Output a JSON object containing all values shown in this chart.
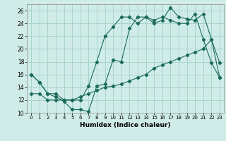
{
  "xlabel": "Humidex (Indice chaleur)",
  "background_color": "#d0ece8",
  "grid_color": "#a8d4cc",
  "line_color": "#1a6b5a",
  "xlim": [
    -0.5,
    23.5
  ],
  "ylim": [
    10,
    27
  ],
  "xticks": [
    0,
    1,
    2,
    3,
    4,
    5,
    6,
    7,
    8,
    9,
    10,
    11,
    12,
    13,
    14,
    15,
    16,
    17,
    18,
    19,
    20,
    21,
    22,
    23
  ],
  "yticks": [
    10,
    12,
    14,
    16,
    18,
    20,
    22,
    24,
    26
  ],
  "series1_x": [
    0,
    1,
    2,
    3,
    4,
    5,
    6,
    7,
    8,
    9,
    10,
    11,
    12,
    13,
    14,
    15,
    16,
    17,
    18,
    19,
    20,
    21,
    22,
    23
  ],
  "series1_y": [
    16,
    14.8,
    13,
    12.5,
    11.8,
    10.5,
    10.5,
    10.2,
    14.2,
    14.5,
    18.3,
    18.0,
    23.2,
    25.0,
    25.0,
    24.0,
    24.5,
    26.5,
    25.0,
    24.7,
    24.5,
    25.5,
    21.5,
    17.8
  ],
  "series2_x": [
    0,
    1,
    2,
    3,
    4,
    5,
    6,
    7,
    8,
    9,
    10,
    11,
    12,
    13,
    14,
    15,
    16,
    17,
    18,
    19,
    20,
    21,
    22,
    23
  ],
  "series2_y": [
    13.0,
    13.0,
    12.0,
    12.0,
    12.0,
    12.0,
    12.5,
    13.0,
    13.5,
    14.0,
    14.2,
    14.5,
    15.0,
    15.5,
    16.0,
    17.0,
    17.5,
    18.0,
    18.5,
    19.0,
    19.5,
    20.0,
    21.5,
    15.5
  ],
  "series3_x": [
    0,
    1,
    2,
    3,
    4,
    5,
    6,
    7,
    8,
    9,
    10,
    11,
    12,
    13,
    14,
    15,
    16,
    17,
    18,
    19,
    20,
    21,
    22,
    23
  ],
  "series3_y": [
    16.0,
    14.8,
    13.0,
    13.0,
    12.0,
    12.0,
    12.0,
    14.2,
    18.0,
    22.0,
    23.5,
    25.0,
    25.0,
    24.0,
    25.0,
    24.5,
    25.0,
    24.5,
    24.0,
    24.0,
    25.5,
    21.5,
    17.8,
    15.5
  ]
}
